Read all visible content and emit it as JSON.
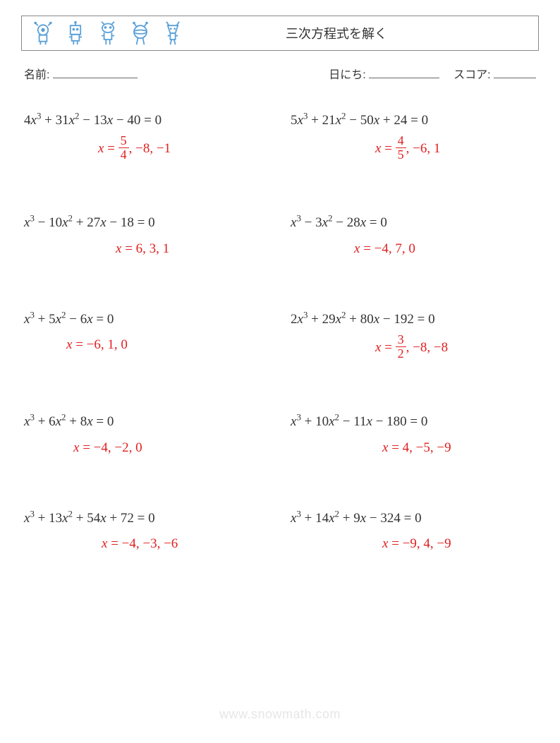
{
  "header": {
    "title": "三次方程式を解く",
    "icon_colors": [
      "#5aa0d8",
      "#5aa0d8",
      "#5aa0d8",
      "#5aa0d8",
      "#5aa0d8"
    ]
  },
  "meta": {
    "name_label": "名前:",
    "date_label": "日にち:",
    "score_label": "スコア:"
  },
  "style": {
    "equation_color": "#333333",
    "answer_color": "#e02020",
    "background": "#ffffff",
    "font_family_math": "Times New Roman, serif",
    "font_family_ui": "sans-serif",
    "equation_fontsize": 19,
    "title_fontsize": 18,
    "meta_fontsize": 16
  },
  "problems": [
    {
      "coeffs": {
        "a": 4,
        "b": 31,
        "c": -13,
        "d": -40
      },
      "equation_display": "4x³ + 31x² − 13x − 40 = 0",
      "answer_x": [
        {
          "frac": [
            5,
            4
          ]
        },
        -8,
        -1
      ],
      "answer_indent": 105
    },
    {
      "coeffs": {
        "a": 5,
        "b": 21,
        "c": -50,
        "d": 24
      },
      "equation_display": "5x³ + 21x² − 50x + 24 = 0",
      "answer_x": [
        {
          "frac": [
            4,
            5
          ]
        },
        -6,
        1
      ],
      "answer_indent": 120
    },
    {
      "coeffs": {
        "a": 1,
        "b": -10,
        "c": 27,
        "d": -18
      },
      "equation_display": "x³ − 10x² + 27x − 18 = 0",
      "answer_x": [
        6,
        3,
        1
      ],
      "answer_indent": 130
    },
    {
      "coeffs": {
        "a": 1,
        "b": -3,
        "c": -28,
        "d": 0
      },
      "equation_display": "x³ − 3x² − 28x = 0",
      "answer_x": [
        -4,
        7,
        0
      ],
      "answer_indent": 90
    },
    {
      "coeffs": {
        "a": 1,
        "b": 5,
        "c": -6,
        "d": 0
      },
      "equation_display": "x³ + 5x² − 6x = 0",
      "answer_x": [
        -6,
        1,
        0
      ],
      "answer_indent": 60
    },
    {
      "coeffs": {
        "a": 2,
        "b": 29,
        "c": 80,
        "d": -192
      },
      "equation_display": "2x³ + 29x² + 80x − 192 = 0",
      "answer_x": [
        {
          "frac": [
            3,
            2
          ]
        },
        -8,
        -8
      ],
      "answer_indent": 120
    },
    {
      "coeffs": {
        "a": 1,
        "b": 6,
        "c": 8,
        "d": 0
      },
      "equation_display": "x³ + 6x² + 8x = 0",
      "answer_x": [
        -4,
        -2,
        0
      ],
      "answer_indent": 70
    },
    {
      "coeffs": {
        "a": 1,
        "b": 10,
        "c": -11,
        "d": -180
      },
      "equation_display": "x³ + 10x² − 11x − 180 = 0",
      "answer_x": [
        4,
        -5,
        -9
      ],
      "answer_indent": 130
    },
    {
      "coeffs": {
        "a": 1,
        "b": 13,
        "c": 54,
        "d": 72
      },
      "equation_display": "x³ + 13x² + 54x + 72 = 0",
      "answer_x": [
        -4,
        -3,
        -6
      ],
      "answer_indent": 110
    },
    {
      "coeffs": {
        "a": 1,
        "b": 14,
        "c": 9,
        "d": -324
      },
      "equation_display": "x³ + 14x² + 9x − 324 = 0",
      "answer_x": [
        -9,
        4,
        -9
      ],
      "answer_indent": 130
    }
  ],
  "watermark": "www.snowmath.com"
}
